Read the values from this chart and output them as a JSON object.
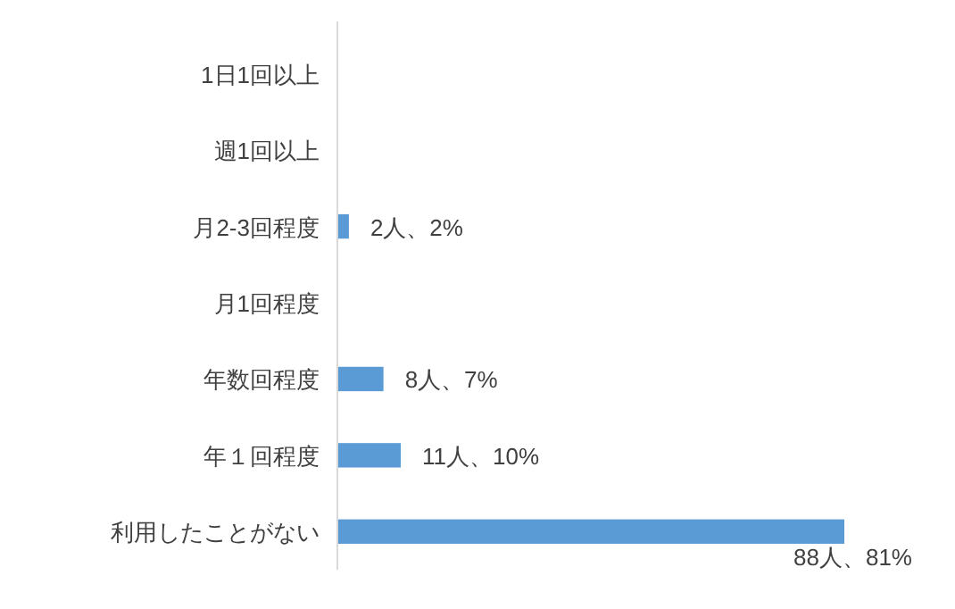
{
  "chart_data": {
    "type": "bar",
    "orientation": "horizontal",
    "categories": [
      "1日1回以上",
      "週1回以上",
      "月2-3回程度",
      "月1回程度",
      "年数回程度",
      "年１回程度",
      "利用したことがない"
    ],
    "values": [
      0,
      0,
      2,
      0,
      8,
      11,
      88
    ],
    "value_labels": [
      null,
      null,
      "2人、2%",
      null,
      "8人、7%",
      "11人、10%",
      "88人、81%"
    ],
    "color": "#5b9bd5",
    "tick_labels": "y"
  }
}
